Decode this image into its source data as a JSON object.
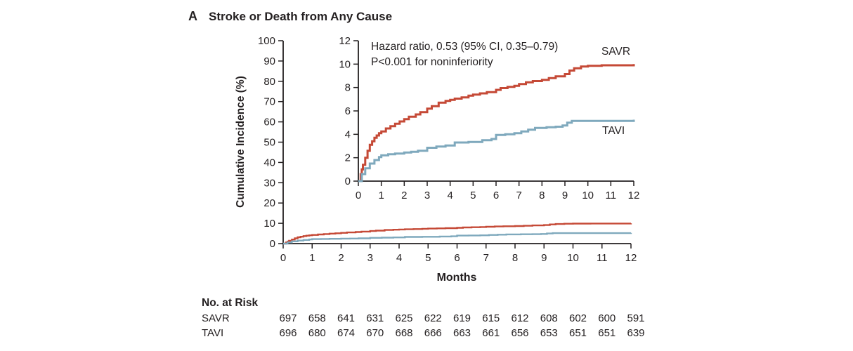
{
  "figure": {
    "panel_label": "A"
  },
  "chart_data": {
    "type": "line",
    "subtype": "cumulative-incidence-step-curves",
    "title": "Stroke or Death from Any Cause",
    "xlabel": "Months",
    "ylabel": "Cumulative Incidence (%)",
    "xlim": [
      0,
      12
    ],
    "x_ticks": [
      0,
      1,
      2,
      3,
      4,
      5,
      6,
      7,
      8,
      9,
      10,
      11,
      12
    ],
    "main_axis": {
      "ylim": [
        0,
        100
      ],
      "y_ticks": [
        0,
        10,
        20,
        30,
        40,
        50,
        60,
        70,
        80,
        90,
        100
      ]
    },
    "inset_axis": {
      "ylim": [
        0,
        12
      ],
      "y_ticks": [
        0,
        2,
        4,
        6,
        8,
        10,
        12
      ]
    },
    "grid": false,
    "legend_position": "curve-end-labels",
    "annotation": {
      "line1": "Hazard ratio, 0.53 (95% CI, 0.35–0.79)",
      "line2": "P<0.001 for noninferiority"
    },
    "series": [
      {
        "name": "SAVR",
        "color": "#c54936",
        "points": [
          [
            0,
            0
          ],
          [
            0.1,
            0.6
          ],
          [
            0.15,
            1.0
          ],
          [
            0.2,
            1.4
          ],
          [
            0.3,
            2.0
          ],
          [
            0.4,
            2.6
          ],
          [
            0.5,
            3.1
          ],
          [
            0.6,
            3.4
          ],
          [
            0.7,
            3.7
          ],
          [
            0.8,
            3.9
          ],
          [
            0.9,
            4.1
          ],
          [
            1.0,
            4.25
          ],
          [
            1.2,
            4.5
          ],
          [
            1.4,
            4.7
          ],
          [
            1.6,
            4.9
          ],
          [
            1.8,
            5.1
          ],
          [
            2.0,
            5.3
          ],
          [
            2.2,
            5.5
          ],
          [
            2.5,
            5.7
          ],
          [
            2.7,
            5.9
          ],
          [
            3.0,
            6.2
          ],
          [
            3.2,
            6.4
          ],
          [
            3.5,
            6.7
          ],
          [
            3.8,
            6.85
          ],
          [
            4.0,
            6.95
          ],
          [
            4.2,
            7.05
          ],
          [
            4.5,
            7.15
          ],
          [
            4.8,
            7.3
          ],
          [
            5.0,
            7.4
          ],
          [
            5.3,
            7.5
          ],
          [
            5.6,
            7.6
          ],
          [
            6.0,
            7.8
          ],
          [
            6.2,
            7.95
          ],
          [
            6.5,
            8.05
          ],
          [
            6.8,
            8.15
          ],
          [
            7.0,
            8.3
          ],
          [
            7.3,
            8.45
          ],
          [
            7.6,
            8.55
          ],
          [
            8.0,
            8.65
          ],
          [
            8.3,
            8.8
          ],
          [
            8.6,
            8.95
          ],
          [
            9.0,
            9.15
          ],
          [
            9.2,
            9.45
          ],
          [
            9.4,
            9.65
          ],
          [
            9.7,
            9.8
          ],
          [
            10.0,
            9.85
          ],
          [
            10.6,
            9.9
          ],
          [
            11.3,
            9.9
          ],
          [
            12,
            10.0
          ]
        ]
      },
      {
        "name": "TAVI",
        "color": "#7fa9bd",
        "points": [
          [
            0,
            0
          ],
          [
            0.15,
            0.6
          ],
          [
            0.3,
            1.1
          ],
          [
            0.5,
            1.5
          ],
          [
            0.7,
            1.8
          ],
          [
            0.9,
            2.05
          ],
          [
            1.0,
            2.2
          ],
          [
            1.3,
            2.3
          ],
          [
            1.6,
            2.35
          ],
          [
            2.0,
            2.45
          ],
          [
            2.3,
            2.5
          ],
          [
            2.6,
            2.6
          ],
          [
            3.0,
            2.85
          ],
          [
            3.4,
            2.95
          ],
          [
            3.8,
            3.05
          ],
          [
            4.2,
            3.3
          ],
          [
            4.8,
            3.35
          ],
          [
            5.4,
            3.5
          ],
          [
            5.8,
            3.6
          ],
          [
            6.0,
            3.95
          ],
          [
            6.4,
            4.0
          ],
          [
            6.8,
            4.1
          ],
          [
            7.1,
            4.25
          ],
          [
            7.4,
            4.4
          ],
          [
            7.7,
            4.55
          ],
          [
            8.2,
            4.6
          ],
          [
            8.6,
            4.65
          ],
          [
            8.9,
            4.75
          ],
          [
            9.1,
            5.0
          ],
          [
            9.3,
            5.15
          ],
          [
            10.2,
            5.15
          ],
          [
            11.2,
            5.15
          ],
          [
            12,
            5.25
          ]
        ]
      }
    ]
  },
  "risk_table": {
    "title": "No. at Risk",
    "months": [
      0,
      1,
      2,
      3,
      4,
      5,
      6,
      7,
      8,
      9,
      10,
      11,
      12
    ],
    "rows": [
      {
        "label": "SAVR",
        "values": [
          "697",
          "658",
          "641",
          "631",
          "625",
          "622",
          "619",
          "615",
          "612",
          "608",
          "602",
          "600",
          "591"
        ]
      },
      {
        "label": "TAVI",
        "values": [
          "696",
          "680",
          "674",
          "670",
          "668",
          "666",
          "663",
          "661",
          "656",
          "653",
          "651",
          "651",
          "639"
        ]
      }
    ]
  },
  "colors": {
    "savr": "#c54936",
    "tavi": "#7fa9bd",
    "axis": "#231f20",
    "background": "#ffffff"
  }
}
